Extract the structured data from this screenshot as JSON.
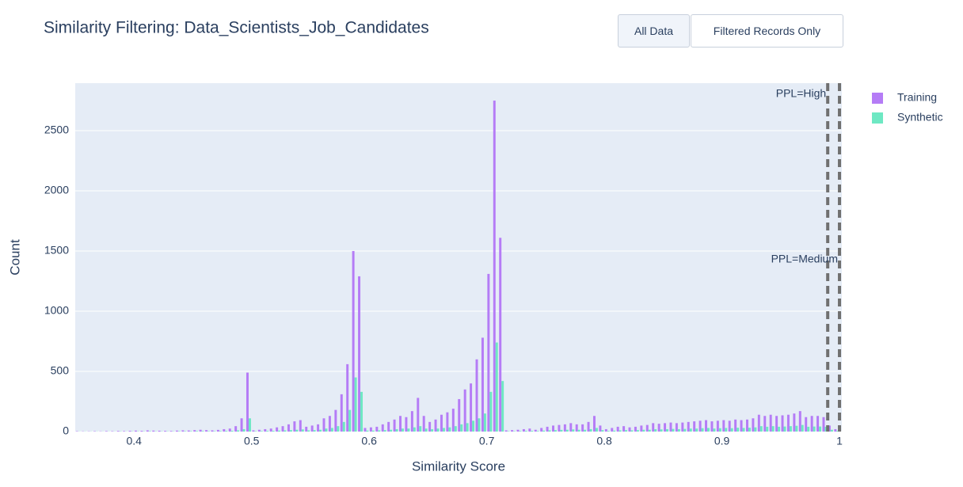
{
  "chart_data": {
    "type": "histogram",
    "title": "Similarity Filtering: Data_Scientists_Job_Candidates",
    "buttons": [
      "All Data",
      "Filtered Records Only"
    ],
    "x_label": "Similarity Score",
    "y_label": "Count",
    "bins": [
      0.35,
      0.355,
      0.36,
      0.365,
      0.37,
      0.375,
      0.38,
      0.385,
      0.39,
      0.395,
      0.4,
      0.405,
      0.41,
      0.415,
      0.42,
      0.425,
      0.43,
      0.435,
      0.44,
      0.445,
      0.45,
      0.455,
      0.46,
      0.465,
      0.47,
      0.475,
      0.48,
      0.485,
      0.49,
      0.495,
      0.5,
      0.505,
      0.51,
      0.515,
      0.52,
      0.525,
      0.53,
      0.535,
      0.54,
      0.545,
      0.55,
      0.555,
      0.56,
      0.565,
      0.57,
      0.575,
      0.58,
      0.585,
      0.59,
      0.595,
      0.6,
      0.605,
      0.61,
      0.615,
      0.62,
      0.625,
      0.63,
      0.635,
      0.64,
      0.645,
      0.65,
      0.655,
      0.66,
      0.665,
      0.67,
      0.675,
      0.68,
      0.685,
      0.69,
      0.695,
      0.7,
      0.705,
      0.71,
      0.715,
      0.72,
      0.725,
      0.73,
      0.735,
      0.74,
      0.745,
      0.75,
      0.755,
      0.76,
      0.765,
      0.77,
      0.775,
      0.78,
      0.785,
      0.79,
      0.795,
      0.8,
      0.805,
      0.81,
      0.815,
      0.82,
      0.825,
      0.83,
      0.835,
      0.84,
      0.845,
      0.85,
      0.855,
      0.86,
      0.865,
      0.87,
      0.875,
      0.88,
      0.885,
      0.89,
      0.895,
      0.9,
      0.905,
      0.91,
      0.915,
      0.92,
      0.925,
      0.93,
      0.935,
      0.94,
      0.945,
      0.95,
      0.955,
      0.96,
      0.965,
      0.97,
      0.975,
      0.98,
      0.985,
      0.99,
      0.995,
      1.0
    ],
    "series": [
      {
        "name": "Training",
        "color": "#b57cf6",
        "values": [
          3,
          2,
          2,
          3,
          2,
          4,
          3,
          5,
          4,
          6,
          8,
          6,
          10,
          8,
          7,
          6,
          5,
          8,
          10,
          9,
          12,
          15,
          12,
          10,
          14,
          20,
          25,
          45,
          110,
          490,
          10,
          15,
          20,
          25,
          35,
          45,
          60,
          85,
          95,
          40,
          50,
          60,
          110,
          130,
          180,
          310,
          560,
          1500,
          1290,
          30,
          35,
          40,
          60,
          80,
          100,
          130,
          120,
          170,
          280,
          130,
          80,
          100,
          140,
          160,
          190,
          270,
          350,
          400,
          600,
          780,
          1310,
          2750,
          1610,
          10,
          12,
          15,
          20,
          25,
          15,
          30,
          40,
          50,
          55,
          60,
          70,
          60,
          60,
          80,
          130,
          50,
          20,
          30,
          40,
          45,
          35,
          40,
          50,
          55,
          70,
          65,
          70,
          75,
          70,
          75,
          80,
          85,
          90,
          95,
          85,
          90,
          95,
          90,
          100,
          95,
          100,
          110,
          140,
          130,
          140,
          130,
          135,
          140,
          150,
          170,
          120,
          130,
          130,
          120,
          50,
          20
        ]
      },
      {
        "name": "Synthetic",
        "color": "#6ee8c3",
        "values": [
          1,
          1,
          1,
          1,
          1,
          1,
          1,
          2,
          1,
          2,
          2,
          2,
          3,
          2,
          2,
          2,
          2,
          3,
          3,
          3,
          4,
          4,
          3,
          3,
          4,
          5,
          6,
          10,
          20,
          110,
          3,
          4,
          5,
          6,
          8,
          10,
          12,
          15,
          18,
          10,
          12,
          15,
          25,
          30,
          45,
          80,
          180,
          450,
          330,
          8,
          8,
          10,
          12,
          15,
          20,
          25,
          25,
          35,
          45,
          25,
          20,
          25,
          30,
          35,
          45,
          60,
          70,
          90,
          110,
          150,
          330,
          740,
          420,
          3,
          3,
          4,
          5,
          6,
          4,
          8,
          10,
          12,
          14,
          15,
          18,
          15,
          15,
          20,
          30,
          12,
          5,
          8,
          10,
          12,
          10,
          12,
          15,
          15,
          20,
          18,
          20,
          22,
          20,
          22,
          25,
          25,
          28,
          30,
          25,
          28,
          30,
          28,
          32,
          30,
          32,
          35,
          45,
          40,
          45,
          40,
          42,
          45,
          48,
          55,
          40,
          42,
          42,
          40,
          15,
          6
        ]
      }
    ],
    "annotations": [
      {
        "text": "PPL=High",
        "x": 0.99
      },
      {
        "text": "PPL=Medium",
        "x": 1.0
      }
    ],
    "xlim": [
      0.35,
      1.002
    ],
    "xticks": [
      0.4,
      0.5,
      0.6,
      0.7,
      0.8,
      0.9,
      1
    ],
    "ylim": [
      0,
      2895
    ],
    "yticks": [
      0,
      500,
      1000,
      1500,
      2000,
      2500
    ],
    "grid": "y",
    "legend": "top-right"
  }
}
